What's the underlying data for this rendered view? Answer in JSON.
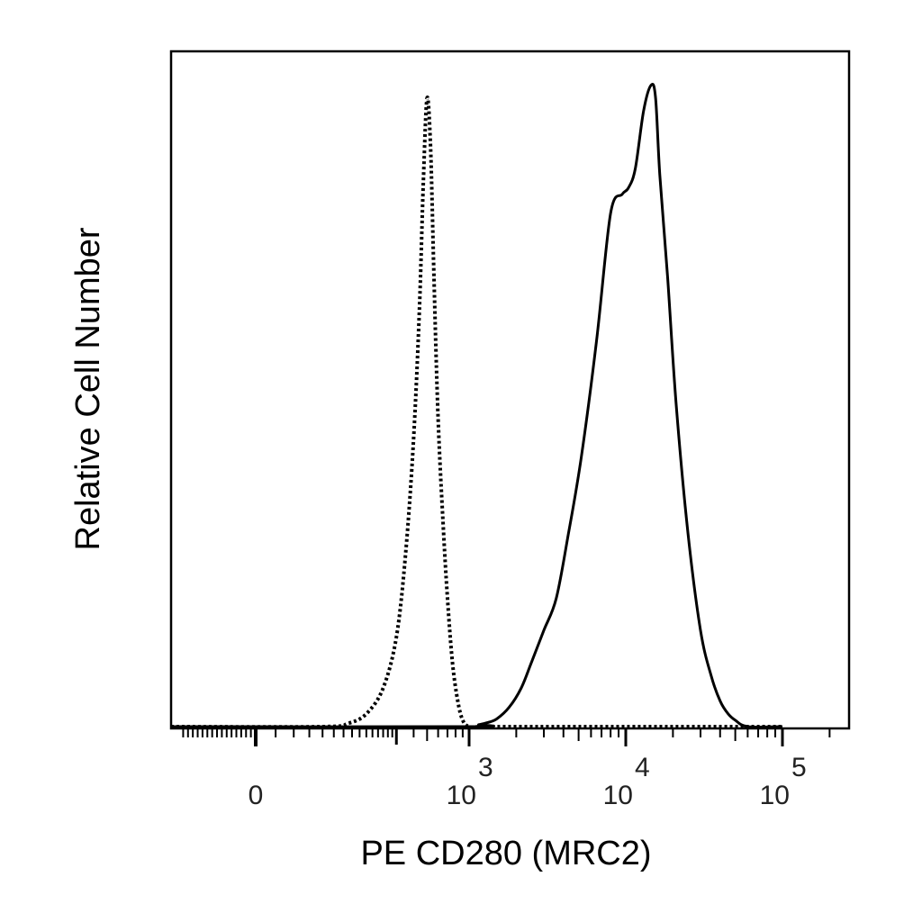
{
  "chart_data": {
    "type": "line",
    "xlabel": "PE  CD280 (MRC2)",
    "ylabel": "Relative Cell Number",
    "xscale": "biexponential",
    "xlim": [
      -350,
      100000
    ],
    "ylim": [
      0,
      1.05
    ],
    "grid": false,
    "legend": "none",
    "x_ticks": [
      {
        "value": 0,
        "base": "0",
        "exp": ""
      },
      {
        "value": 1000,
        "base": "10",
        "exp": "3"
      },
      {
        "value": 10000,
        "base": "10",
        "exp": "4"
      },
      {
        "value": 100000,
        "base": "10",
        "exp": "5"
      }
    ],
    "series": [
      {
        "style": "dotted",
        "color": "#000000",
        "x": [
          -350,
          80,
          130,
          180,
          240,
          300,
          350,
          400,
          440,
          470,
          500,
          530,
          560,
          600,
          650,
          700,
          760,
          830,
          900,
          1000,
          1200,
          2000,
          10000,
          100000
        ],
        "y": [
          0,
          0,
          0.005,
          0.02,
          0.06,
          0.14,
          0.27,
          0.45,
          0.65,
          0.85,
          0.98,
          0.9,
          0.7,
          0.48,
          0.32,
          0.2,
          0.1,
          0.04,
          0.01,
          0,
          0,
          0,
          0,
          0
        ]
      },
      {
        "style": "solid",
        "color": "#000000",
        "x": [
          -350,
          1000,
          1150,
          1300,
          1500,
          1800,
          2150,
          2500,
          3000,
          3600,
          4300,
          5200,
          6500,
          8000,
          9500,
          10400,
          11500,
          13000,
          14500,
          15500,
          16500,
          18500,
          21000,
          25000,
          30000,
          35000,
          40000,
          45000,
          50000,
          60000,
          100000
        ],
        "y": [
          0,
          0,
          0.003,
          0.006,
          0.012,
          0.03,
          0.06,
          0.1,
          0.15,
          0.2,
          0.3,
          0.42,
          0.6,
          0.8,
          0.83,
          0.84,
          0.87,
          0.96,
          1.0,
          0.98,
          0.86,
          0.7,
          0.5,
          0.3,
          0.15,
          0.08,
          0.04,
          0.02,
          0.01,
          0,
          0
        ]
      }
    ]
  }
}
